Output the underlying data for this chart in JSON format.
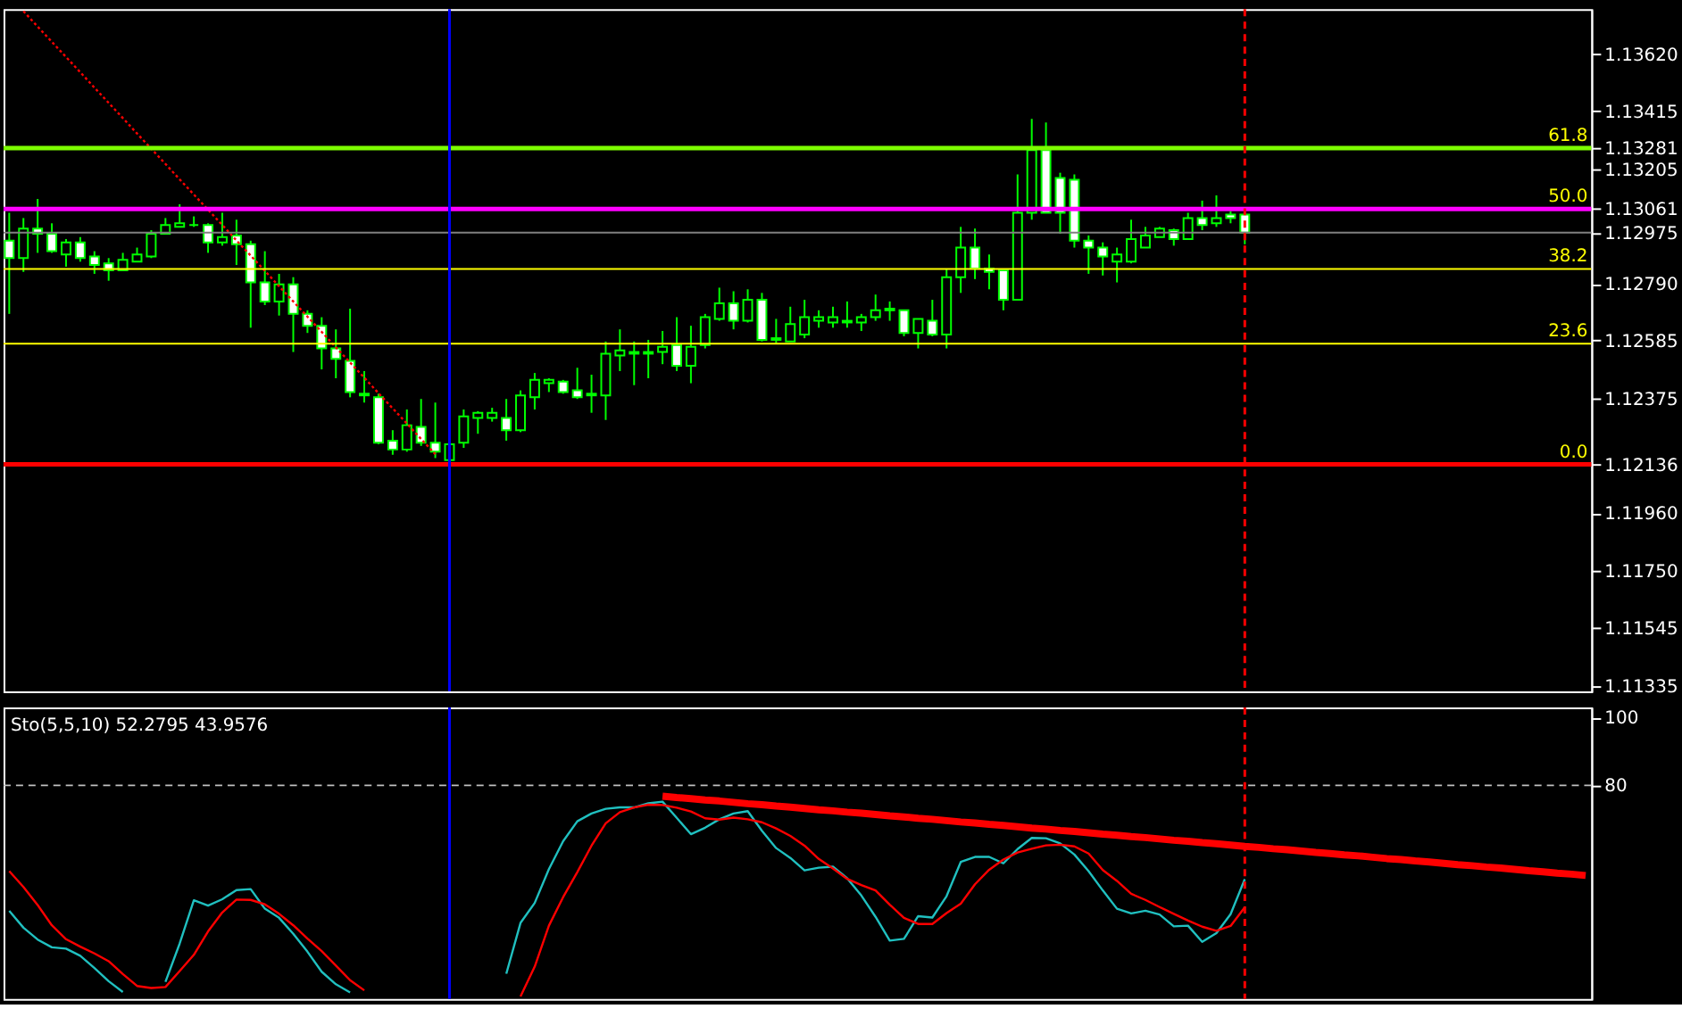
{
  "chart_data": [
    {
      "type": "candlestick",
      "color": "#00ff00",
      "ylim": [
        1.11314,
        1.13784
      ],
      "tick_labels": "y",
      "grid": false,
      "categories": [
        null,
        null,
        null,
        null,
        null,
        null,
        null,
        null,
        null,
        null,
        null,
        null,
        null,
        null,
        null,
        null,
        null,
        null,
        null,
        null,
        null,
        null,
        null,
        null,
        null,
        null,
        null,
        null,
        null,
        null,
        null,
        null,
        null,
        null,
        null,
        null,
        null,
        null,
        null,
        null,
        null,
        null,
        null,
        null,
        null,
        null,
        null,
        null,
        null,
        null,
        null,
        null,
        null,
        null,
        null,
        null,
        null,
        null,
        null,
        null,
        null,
        null,
        null,
        null,
        null,
        null,
        null,
        null,
        null,
        null,
        null,
        null,
        null,
        null,
        null,
        null,
        null,
        null,
        null,
        null,
        null,
        null,
        null,
        null,
        null,
        null,
        null,
        null,
        null,
        null,
        null,
        null,
        null,
        null,
        null,
        null,
        null,
        null,
        null,
        null,
        null,
        null,
        null,
        null,
        null,
        null,
        null,
        null,
        null,
        null,
        null,
        null
      ],
      "yticks": [
        {
          "value": 1.1362,
          "label": "1.13620"
        },
        1.13415,
        1.13205,
        1.13281,
        1.13061,
        1.12975,
        {
          "value": 1.1279,
          "label": "1.12790"
        },
        1.12585,
        1.12375,
        1.12136,
        {
          "value": 1.1196,
          "label": "1.11960"
        },
        {
          "value": 1.1175,
          "label": "1.11750"
        },
        1.11545,
        1.11335
      ],
      "ohlc": [
        [
          1.12946,
          1.13047,
          1.12681,
          1.12883
        ],
        [
          1.12883,
          1.13028,
          1.12833,
          1.1299
        ],
        [
          1.1299,
          1.13097,
          1.12902,
          1.12971
        ],
        [
          1.12971,
          1.13009,
          1.12902,
          1.12908
        ],
        [
          1.12896,
          1.12952,
          1.12852,
          1.1294
        ],
        [
          1.1294,
          1.12959,
          1.1287,
          1.12883
        ],
        [
          1.12889,
          1.12908,
          1.12826,
          1.12858
        ],
        [
          1.12864,
          1.12883,
          1.12801,
          1.12839
        ],
        [
          1.12839,
          1.12902,
          1.12839,
          1.12877
        ],
        [
          1.1287,
          1.12921,
          1.1287,
          1.12896
        ],
        [
          1.12889,
          1.12984,
          1.12883,
          1.12971
        ],
        [
          1.12971,
          1.13028,
          1.12971,
          1.13003
        ],
        [
          1.12996,
          1.13078,
          1.12996,
          1.13009
        ],
        [
          1.13003,
          1.13034,
          1.12996,
          1.13003
        ],
        [
          1.13003,
          1.13009,
          1.12902,
          1.1294
        ],
        [
          1.1294,
          1.13047,
          1.12928,
          1.12959
        ],
        [
          1.12965,
          1.13022,
          1.12858,
          1.12933
        ],
        [
          1.12933,
          1.12946,
          1.12631,
          1.12795
        ],
        [
          1.12795,
          1.12908,
          1.12713,
          1.12726
        ],
        [
          1.12726,
          1.12826,
          1.12675,
          1.12788
        ],
        [
          1.12788,
          1.12814,
          1.12543,
          1.12681
        ],
        [
          1.12681,
          1.12694,
          1.12612,
          1.12638
        ],
        [
          1.12638,
          1.12669,
          1.1248,
          1.12556
        ],
        [
          1.12556,
          1.12625,
          1.12448,
          1.12518
        ],
        [
          1.12511,
          1.127,
          1.12379,
          1.12398
        ],
        [
          1.12392,
          1.12474,
          1.1236,
          1.12386
        ],
        [
          1.12379,
          1.12392,
          1.12209,
          1.12215
        ],
        [
          1.12222,
          1.1226,
          1.12171,
          1.1219
        ],
        [
          1.1219,
          1.12335,
          1.12182,
          1.12278
        ],
        [
          1.12272,
          1.12373,
          1.12203,
          1.12215
        ],
        [
          1.12215,
          1.1236,
          1.12159,
          1.12182
        ],
        [
          1.12152,
          1.12215,
          1.12146,
          1.12209
        ],
        [
          1.12215,
          1.12335,
          1.12196,
          1.1231
        ],
        [
          1.12304,
          1.12329,
          1.12247,
          1.12323
        ],
        [
          1.12304,
          1.12341,
          1.12291,
          1.12323
        ],
        [
          1.12304,
          1.12373,
          1.12222,
          1.1226
        ],
        [
          1.1226,
          1.12404,
          1.12253,
          1.12386
        ],
        [
          1.12379,
          1.12467,
          1.12335,
          1.12442
        ],
        [
          1.1243,
          1.12448,
          1.12398,
          1.12442
        ],
        [
          1.12436,
          1.12442,
          1.12392,
          1.12398
        ],
        [
          1.12404,
          1.12486,
          1.12373,
          1.12379
        ],
        [
          1.12392,
          1.12461,
          1.12323,
          1.12386
        ],
        [
          1.12386,
          1.12581,
          1.12297,
          1.12537
        ],
        [
          1.1253,
          1.12625,
          1.12474,
          1.12549
        ],
        [
          1.12543,
          1.12581,
          1.12423,
          1.12537
        ],
        [
          1.12537,
          1.12587,
          1.12448,
          1.12543
        ],
        [
          1.12543,
          1.12619,
          1.12499,
          1.12562
        ],
        [
          1.12568,
          1.12669,
          1.12474,
          1.12493
        ],
        [
          1.12493,
          1.12638,
          1.1243,
          1.12562
        ],
        [
          1.12568,
          1.12681,
          1.12556,
          1.12669
        ],
        [
          1.12663,
          1.12776,
          1.12656,
          1.12719
        ],
        [
          1.12719,
          1.12763,
          1.12625,
          1.12656
        ],
        [
          1.12656,
          1.1277,
          1.1265,
          1.12732
        ],
        [
          1.12732,
          1.12757,
          1.12581,
          1.12587
        ],
        [
          1.12593,
          1.12663,
          1.12574,
          1.12587
        ],
        [
          1.12581,
          1.12707,
          1.12581,
          1.12644
        ],
        [
          1.12606,
          1.12732,
          1.12593,
          1.12669
        ],
        [
          1.12656,
          1.12694,
          1.12631,
          1.12669
        ],
        [
          1.1265,
          1.12707,
          1.12631,
          1.12669
        ],
        [
          1.1265,
          1.12726,
          1.12631,
          1.12656
        ],
        [
          1.1265,
          1.12681,
          1.12619,
          1.12669
        ],
        [
          1.12669,
          1.12751,
          1.12656,
          1.12694
        ],
        [
          1.12694,
          1.12726,
          1.12656,
          1.127
        ],
        [
          1.12694,
          1.12694,
          1.126,
          1.12612
        ],
        [
          1.12612,
          1.12663,
          1.12556,
          1.12663
        ],
        [
          1.12656,
          1.12732,
          1.126,
          1.12606
        ],
        [
          1.12606,
          1.12845,
          1.12556,
          1.12814
        ],
        [
          1.12814,
          1.12996,
          1.12757,
          1.12921
        ],
        [
          1.12921,
          1.1299,
          1.12807,
          1.12845
        ],
        [
          1.12845,
          1.12896,
          1.1277,
          1.12833
        ],
        [
          1.12839,
          1.12839,
          1.12694,
          1.12732
        ],
        [
          1.12732,
          1.13186,
          1.12732,
          1.13047
        ],
        [
          1.13047,
          1.13387,
          1.13022,
          1.13274
        ],
        [
          1.13274,
          1.13374,
          1.13047,
          1.13047
        ],
        [
          1.13173,
          1.13192,
          1.12971,
          1.13047
        ],
        [
          1.13167,
          1.13186,
          1.12921,
          1.12946
        ],
        [
          1.12946,
          1.12965,
          1.12826,
          1.12921
        ],
        [
          1.12921,
          1.1294,
          1.1282,
          1.12889
        ],
        [
          1.1287,
          1.12921,
          1.12795,
          1.12896
        ],
        [
          1.1287,
          1.13022,
          1.12864,
          1.12952
        ],
        [
          1.12921,
          1.12996,
          1.12921,
          1.12965
        ],
        [
          1.12959,
          1.12996,
          1.12959,
          1.1299
        ],
        [
          1.12984,
          1.1299,
          1.12928,
          1.12952
        ],
        [
          1.12952,
          1.13047,
          1.12952,
          1.13028
        ],
        [
          1.13028,
          1.13091,
          1.12984,
          1.13003
        ],
        [
          1.13009,
          1.1311,
          1.12996,
          1.13028
        ],
        [
          1.13041,
          1.13053,
          1.13009,
          1.13028
        ],
        [
          1.13041,
          1.13047,
          1.12933,
          1.12975
        ],
        null,
        null,
        null,
        null,
        null,
        null,
        null,
        null,
        null,
        null,
        null,
        null,
        null,
        null,
        null,
        null,
        null,
        null,
        null,
        null,
        null,
        null,
        null,
        null
      ],
      "series": [
        {
          "type": "line",
          "color": "#ff0000",
          "line_style": "dotted",
          "values": [
            null,
            1.13777,
            1.13721,
            1.13666,
            1.13611,
            1.13556,
            1.135,
            1.13445,
            1.1339,
            1.13334,
            1.13279,
            1.13224,
            1.13168,
            1.13113,
            1.13058,
            1.13003,
            1.12947,
            1.12892,
            1.12837,
            1.12781,
            1.12726,
            1.12671,
            1.12616,
            1.1256,
            1.12505,
            1.1245,
            1.12394,
            1.12339,
            1.12284,
            1.12228,
            1.12173,
            null,
            null,
            null,
            null,
            null,
            null,
            null,
            null,
            null,
            null,
            null,
            null,
            null,
            null,
            null,
            null,
            null,
            null,
            null,
            null,
            null,
            null,
            null,
            null,
            null,
            null,
            null,
            null,
            null,
            null,
            null,
            null,
            null,
            null,
            null,
            null,
            null,
            null,
            null,
            null,
            null,
            null,
            null,
            null,
            null,
            null,
            null,
            null,
            null,
            null,
            null,
            null,
            null,
            null,
            null,
            null,
            null,
            null,
            null,
            null,
            null,
            null,
            null,
            null,
            null,
            null,
            null,
            null,
            null,
            null,
            null,
            null,
            null,
            null,
            null,
            null,
            null,
            null,
            null,
            null,
            null
          ]
        }
      ],
      "annotations": [
        {
          "text": "61.8",
          "y": 1.13281
        },
        {
          "text": "50.0",
          "y": 1.13061
        },
        {
          "text": "38.2",
          "y": 1.12844
        },
        {
          "text": "23.6",
          "y": 1.12573
        },
        {
          "text": "0.0",
          "y": 1.12136
        }
      ],
      "ref_lines": [
        {
          "axis": "y",
          "value": 1.13281,
          "color": "#7cfc00"
        },
        {
          "axis": "y",
          "value": 1.13061,
          "color": "#ff00ff"
        },
        {
          "axis": "y",
          "value": 1.12975,
          "color": "#808080"
        },
        {
          "axis": "y",
          "value": 1.12844,
          "color": "#ffff00"
        },
        {
          "axis": "y",
          "value": 1.12573,
          "color": "#ffff00"
        },
        {
          "axis": "y",
          "value": 1.12136,
          "color": "#ff0000"
        }
      ]
    },
    {
      "type": "line",
      "ylim": [
        17,
        103
      ],
      "yticks": [
        80,
        100
      ],
      "tick_labels": "y",
      "grid": false,
      "categories": [
        null,
        null,
        null,
        null,
        null,
        null,
        null,
        null,
        null,
        null,
        null,
        null,
        null,
        null,
        null,
        null,
        null,
        null,
        null,
        null,
        null,
        null,
        null,
        null,
        null,
        null,
        null,
        null,
        null,
        null,
        null,
        null,
        null,
        null,
        null,
        null,
        null,
        null,
        null,
        null,
        null,
        null,
        null,
        null,
        null,
        null,
        null,
        null,
        null,
        null,
        null,
        null,
        null,
        null,
        null,
        null,
        null,
        null,
        null,
        null,
        null,
        null,
        null,
        null,
        null,
        null,
        null,
        null,
        null,
        null,
        null,
        null,
        null,
        null,
        null,
        null,
        null,
        null,
        null,
        null,
        null,
        null,
        null,
        null,
        null,
        null,
        null,
        null,
        null,
        null,
        null,
        null,
        null,
        null,
        null,
        null,
        null,
        null,
        null,
        null,
        null,
        null,
        null,
        null,
        null,
        null,
        null,
        null,
        null,
        null,
        null,
        null
      ],
      "annotations": [
        "Sto(5,5,10) 52.2795 43.9576"
      ],
      "series": [
        {
          "type": "line",
          "color": "#20c0c0",
          "values": [
            43.0,
            38.0,
            34.5,
            32.2,
            31.8,
            29.7,
            26.1,
            22.2,
            19.0,
            null,
            null,
            22.0,
            33.3,
            46.1,
            44.5,
            46.4,
            49.1,
            49.4,
            43.6,
            40.9,
            36.2,
            30.9,
            25.0,
            21.3,
            18.9,
            null,
            null,
            null,
            null,
            null,
            null,
            null,
            null,
            null,
            null,
            24.4,
            39.4,
            45.3,
            55.3,
            63.5,
            69.4,
            71.7,
            73.1,
            73.5,
            73.5,
            74.7,
            75.2,
            70.4,
            65.6,
            67.5,
            70.0,
            71.7,
            72.4,
            66.6,
            61.5,
            58.6,
            54.9,
            55.7,
            56.0,
            52.6,
            47.5,
            41.2,
            34.2,
            34.7,
            41.4,
            41.0,
            47.3,
            57.4,
            58.9,
            58.9,
            57.0,
            61.2,
            64.5,
            64.4,
            62.9,
            59.6,
            54.7,
            49.0,
            43.6,
            42.2,
            43.0,
            41.9,
            38.4,
            38.6,
            33.8,
            36.4,
            42.0,
            52.3,
            null,
            null,
            null,
            null,
            null,
            null,
            null,
            null,
            null,
            null,
            null,
            null,
            null,
            null,
            null,
            null,
            null,
            null,
            null,
            null,
            null,
            null,
            null,
            null
          ]
        },
        {
          "type": "line",
          "color": "#ff0000",
          "values": [
            54.7,
            50.0,
            44.7,
            38.7,
            34.6,
            32.4,
            30.4,
            28.1,
            24.3,
            20.8,
            20.2,
            20.5,
            25.2,
            30.0,
            36.9,
            42.5,
            46.3,
            46.2,
            44.9,
            42.1,
            38.7,
            34.8,
            31.1,
            26.8,
            22.5,
            19.5,
            null,
            null,
            null,
            null,
            null,
            null,
            null,
            null,
            null,
            null,
            17.7,
            26.5,
            38.6,
            47.0,
            54.4,
            62.2,
            68.8,
            72.1,
            73.5,
            74.3,
            74.2,
            73.4,
            72.3,
            70.3,
            69.9,
            70.5,
            70.0,
            69.1,
            67.3,
            65.1,
            62.2,
            58.3,
            55.5,
            52.4,
            50.6,
            49.0,
            44.8,
            40.9,
            39.1,
            39.1,
            42.3,
            45.1,
            50.8,
            55.1,
            58.1,
            60.2,
            61.3,
            62.3,
            62.5,
            62.0,
            59.9,
            55.0,
            51.8,
            48.0,
            46.2,
            44.1,
            42.1,
            40.1,
            38.3,
            37.1,
            38.5,
            44.0,
            null,
            null,
            null,
            null,
            null,
            null,
            null,
            null,
            null,
            null,
            null,
            null,
            null,
            null,
            null,
            null,
            null,
            null,
            null,
            null,
            null,
            null,
            null,
            null
          ]
        },
        {
          "type": "line",
          "color": "#ff0000",
          "line_style": "solid",
          "values": [
            null,
            null,
            null,
            null,
            null,
            null,
            null,
            null,
            null,
            null,
            null,
            null,
            null,
            null,
            null,
            null,
            null,
            null,
            null,
            null,
            null,
            null,
            null,
            null,
            null,
            null,
            null,
            null,
            null,
            null,
            null,
            null,
            null,
            null,
            null,
            null,
            null,
            null,
            null,
            null,
            null,
            null,
            null,
            null,
            null,
            null,
            76.8,
            76.4,
            76.1,
            75.7,
            75.4,
            75.0,
            74.6,
            74.3,
            73.9,
            73.6,
            73.2,
            72.8,
            72.5,
            72.1,
            71.8,
            71.4,
            71.0,
            70.7,
            70.3,
            70.0,
            69.6,
            69.2,
            68.9,
            68.5,
            68.2,
            67.8,
            67.4,
            67.1,
            66.7,
            66.4,
            66.0,
            65.6,
            65.3,
            64.9,
            64.6,
            64.2,
            63.8,
            63.5,
            63.1,
            62.8,
            62.4,
            62.0,
            61.7,
            61.3,
            61.0,
            60.6,
            60.2,
            59.9,
            59.5,
            59.2,
            58.8,
            58.4,
            58.1,
            57.7,
            57.4,
            57.0,
            56.6,
            56.3,
            55.9,
            55.6,
            55.2,
            54.8,
            54.5,
            54.1,
            53.8,
            53.4
          ]
        }
      ],
      "ref_lines": [
        {
          "axis": "y",
          "value": 80,
          "color": "#c0c0c0",
          "line_style": "dashed"
        }
      ]
    }
  ]
}
